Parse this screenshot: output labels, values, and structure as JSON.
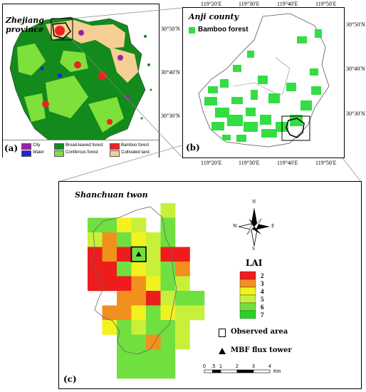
{
  "panel_a": {
    "title": "Zhejiang province",
    "label": "(a)",
    "legend": [
      {
        "text": "City",
        "color": "#9b1fb0"
      },
      {
        "text": "Water",
        "color": "#1f1fe8"
      },
      {
        "text": "Broad-leaved forest",
        "color": "#138a1c"
      },
      {
        "text": "Coniferous forest",
        "color": "#7ee03a"
      },
      {
        "text": "Bamboo forest",
        "color": "#ee2222"
      },
      {
        "text": "Cultivated land",
        "color": "#f5cf93"
      }
    ]
  },
  "panel_b": {
    "title": "Anji county",
    "label": "(b)",
    "legend_text": "Bamboo forest",
    "legend_color": "#33dd44",
    "top_ticks": [
      "119°20′E",
      "119°30′E",
      "119°40′E",
      "119°50′E"
    ],
    "bottom_ticks": [
      "119°20′E",
      "119°30′E",
      "119°40′E",
      "119°50′E"
    ],
    "left_ticks": [
      "30°50′N",
      "30°40′N",
      "30°30′N"
    ],
    "right_ticks": [
      "30°50′N",
      "30°40′N",
      "30°30′N"
    ]
  },
  "panel_c": {
    "title": "Shanchuan twon",
    "label": "(c)",
    "compass_icon": "north-arrow-compass-icon",
    "compass": {
      "n": "N",
      "s": "S",
      "e": "E",
      "w": "W"
    },
    "lai_title": "LAI",
    "lai_classes": [
      {
        "value": "2",
        "color": "#ee1c1c"
      },
      {
        "value": "3",
        "color": "#f2901e"
      },
      {
        "value": "4",
        "color": "#f2f21e"
      },
      {
        "value": "5",
        "color": "#c8f03a"
      },
      {
        "value": "6",
        "color": "#6fe040"
      },
      {
        "value": "7",
        "color": "#28d428"
      }
    ],
    "observed_area": "Observed area",
    "flux_tower": "MBF flux tower",
    "scale_ticks": [
      "0",
      ".5",
      "1",
      "2",
      "3",
      "4"
    ],
    "scale_unit": "Km",
    "lai_grid": [
      [
        0,
        0,
        0,
        0,
        0,
        5,
        0,
        0
      ],
      [
        6,
        6,
        4,
        5,
        0,
        6,
        0,
        0
      ],
      [
        5,
        3,
        6,
        4,
        5,
        6,
        0,
        0
      ],
      [
        2,
        3,
        2,
        6,
        5,
        2,
        2,
        0
      ],
      [
        2,
        2,
        6,
        4,
        5,
        6,
        3,
        0
      ],
      [
        2,
        2,
        2,
        3,
        4,
        6,
        5,
        0
      ],
      [
        0,
        0,
        3,
        3,
        2,
        5,
        6,
        6
      ],
      [
        0,
        3,
        3,
        4,
        6,
        4,
        5,
        5
      ],
      [
        0,
        4,
        6,
        5,
        6,
        6,
        5,
        0
      ],
      [
        0,
        0,
        6,
        6,
        3,
        6,
        5,
        0
      ],
      [
        0,
        0,
        6,
        6,
        6,
        6,
        0,
        0
      ],
      [
        0,
        0,
        6,
        6,
        6,
        6,
        0,
        0
      ]
    ]
  }
}
